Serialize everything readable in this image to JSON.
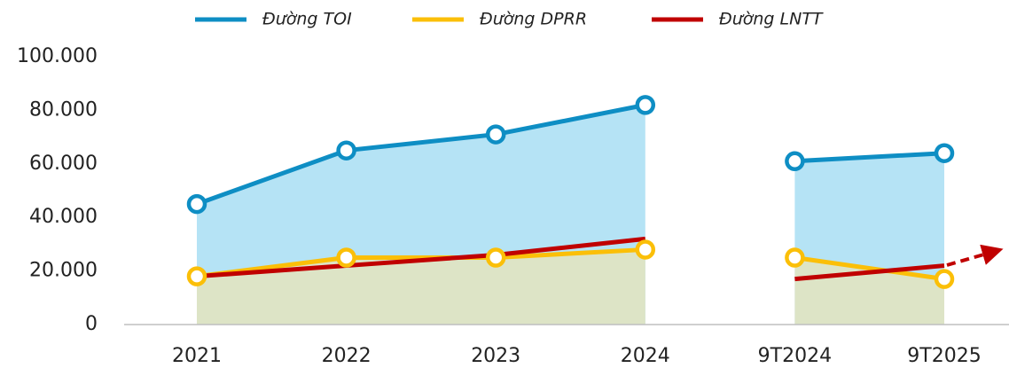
{
  "chart_data": [
    {
      "type": "line",
      "categories": [
        "2021",
        "2022",
        "2023",
        "2024"
      ],
      "series": [
        {
          "name": "Đường TOI",
          "color": "#0e8ec4",
          "fill": "#b5e3f5",
          "markers": true,
          "values": [
            45000,
            65000,
            71000,
            82000
          ]
        },
        {
          "name": "Đường DPRR",
          "color": "#fbbf08",
          "fill": "#dde4c6",
          "markers": true,
          "values": [
            18000,
            25000,
            25000,
            28000
          ]
        },
        {
          "name": "Đường LNTT",
          "color": "#c00000",
          "markers": false,
          "values": [
            18000,
            22000,
            26000,
            32000
          ]
        }
      ],
      "ylim": [
        0,
        100000
      ],
      "yticks": [
        {
          "value": 0,
          "label": "0"
        },
        {
          "value": 20000,
          "label": "20.000"
        },
        {
          "value": 40000,
          "label": "40.000"
        },
        {
          "value": 60000,
          "label": "60.000"
        },
        {
          "value": 80000,
          "label": "80.000"
        },
        {
          "value": 100000,
          "label": "100.000"
        }
      ],
      "legend": "top"
    },
    {
      "type": "line",
      "categories": [
        "9T2024",
        "9T2025"
      ],
      "series": [
        {
          "color": "#0e8ec4",
          "fill": "#b5e3f5",
          "markers": true,
          "values": [
            61000,
            64000
          ]
        },
        {
          "color": "#fbbf08",
          "fill": "#dde4c6",
          "markers": true,
          "values": [
            25000,
            17000
          ]
        },
        {
          "color": "#c00000",
          "markers": false,
          "values": [
            17000,
            22000
          ]
        }
      ],
      "ylim": [
        0,
        100000
      ]
    }
  ]
}
